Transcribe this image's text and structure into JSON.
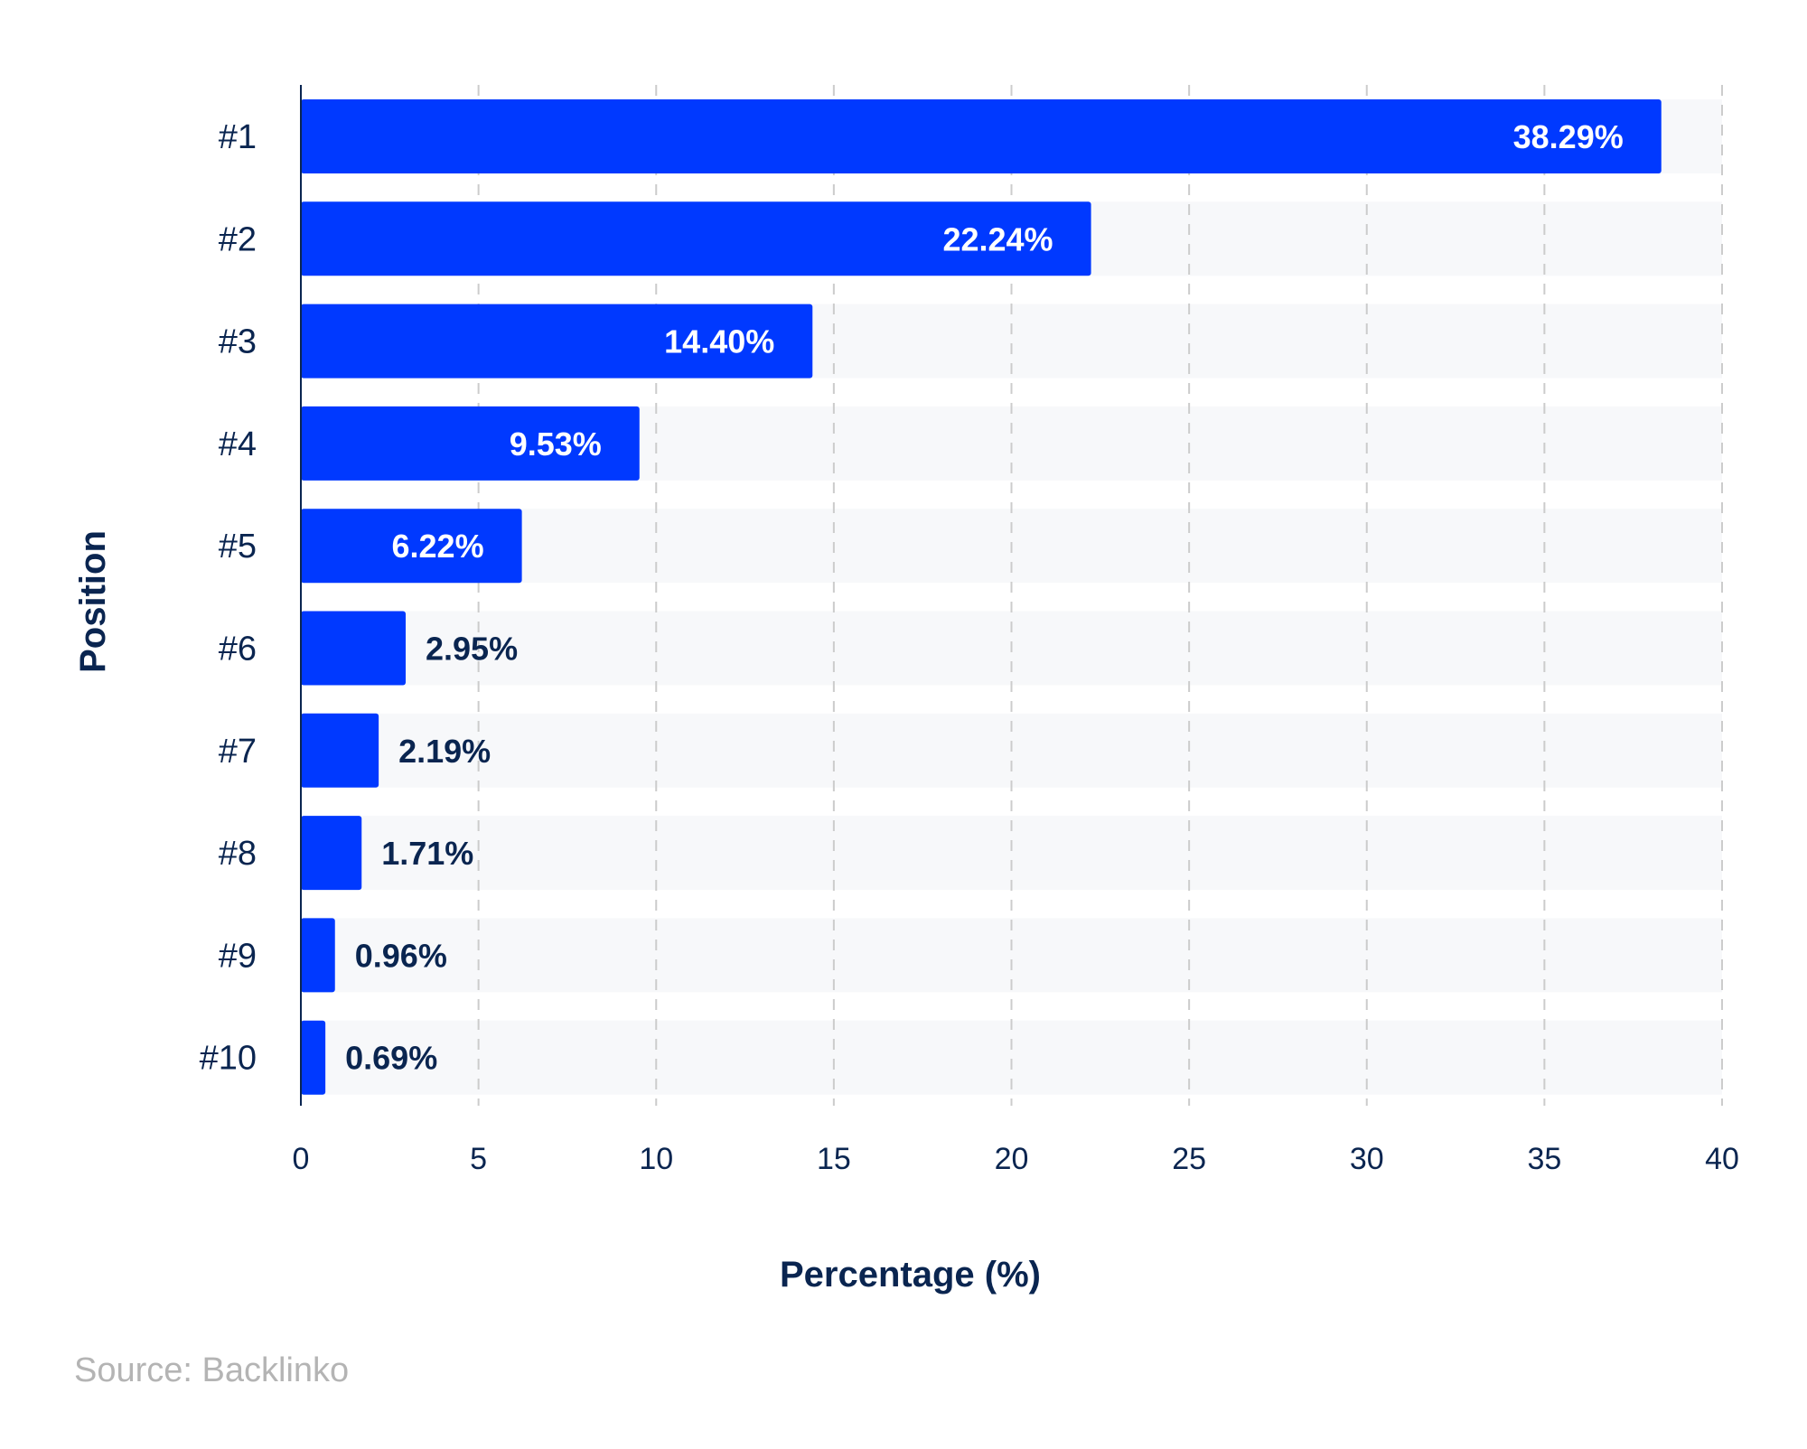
{
  "chart_data": {
    "type": "bar",
    "orientation": "horizontal",
    "categories": [
      "#1",
      "#2",
      "#3",
      "#4",
      "#5",
      "#6",
      "#7",
      "#8",
      "#9",
      "#10"
    ],
    "values": [
      38.29,
      22.24,
      14.4,
      9.53,
      6.22,
      2.95,
      2.19,
      1.71,
      0.96,
      0.69
    ],
    "data_labels": [
      "38.29%",
      "22.24%",
      "14.40%",
      "9.53%",
      "6.22%",
      "2.95%",
      "2.19%",
      "1.71%",
      "0.96%",
      "0.69%"
    ],
    "xlabel": "Percentage (%)",
    "ylabel": "Position",
    "xlim": [
      0,
      40
    ],
    "xticks": [
      0,
      5,
      10,
      15,
      20,
      25,
      30,
      35,
      40
    ],
    "grid": "vertical dashed",
    "legend": "none"
  },
  "source": "Source: Backlinko",
  "colors": {
    "bar": "#0039ff",
    "row_background": "#f7f8fa",
    "text": "#0a2550",
    "label_on_bar": "#ffffff",
    "grid": "#cccccc",
    "source_text": "#b4b4b4"
  }
}
